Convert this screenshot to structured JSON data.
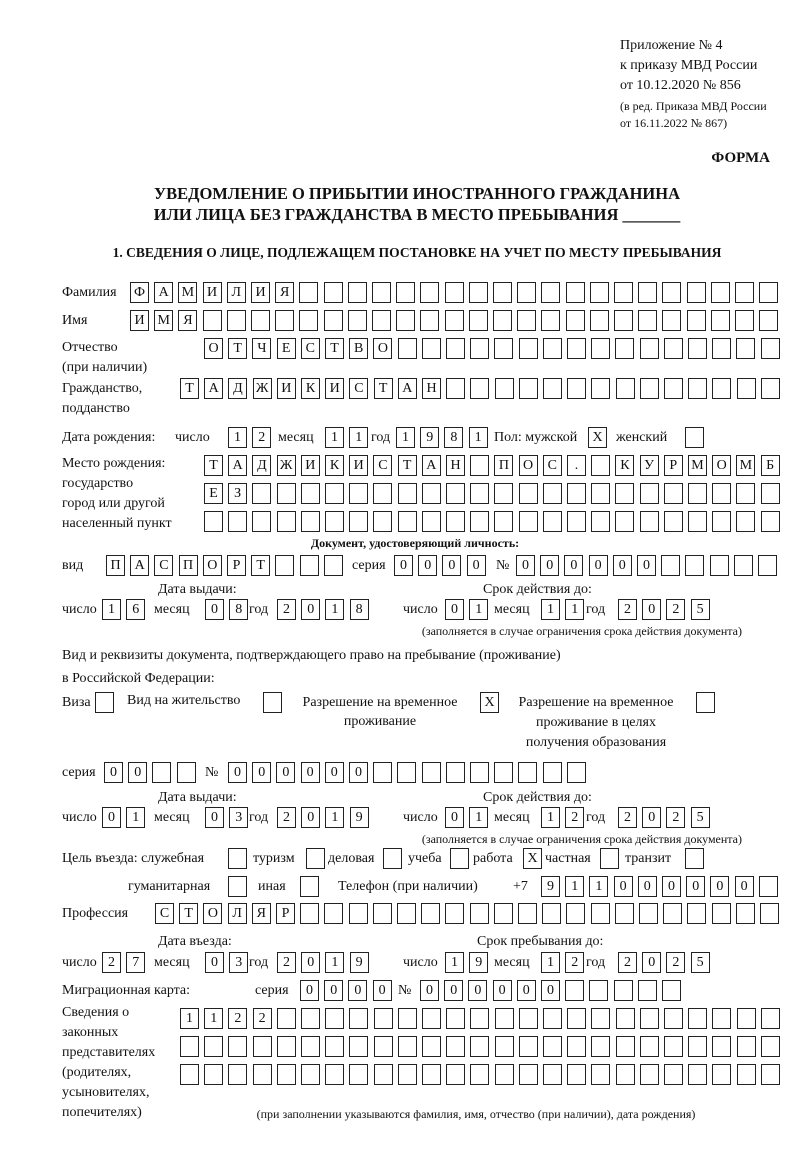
{
  "header": {
    "appendix": [
      "Приложение № 4",
      "к приказу МВД России",
      "от 10.12.2020 № 856"
    ],
    "edition": [
      "(в ред. Приказа МВД России",
      "от 16.11.2022 № 867)"
    ],
    "form_label": "ФОРМА",
    "title": [
      "УВЕДОМЛЕНИЕ О ПРИБЫТИИ ИНОСТРАННОГО ГРАЖДАНИНА",
      "ИЛИ ЛИЦА БЕЗ ГРАЖДАНСТВА В МЕСТО ПРЕБЫВАНИЯ _______"
    ],
    "section": "1. СВЕДЕНИЯ О ЛИЦЕ, ПОДЛЕЖАЩЕМ ПОСТАНОВКЕ НА УЧЕТ ПО МЕСТУ ПРЕБЫВАНИЯ"
  },
  "labels": {
    "surname": "Фамилия",
    "name": "Имя",
    "patronymic": "Отчество",
    "patronymic_note": "(при наличии)",
    "citizenship": "Гражданство,",
    "citizenship2": "подданство",
    "birth_date": "Дата рождения:",
    "day": "число",
    "month": "месяц",
    "year": "год",
    "sex": "Пол: мужской",
    "female": "женский",
    "birthplace": [
      "Место рождения:",
      "государство",
      "город или другой",
      "населенный пункт"
    ],
    "id_doc": "Документ, удостоверяющий личность:",
    "kind": "вид",
    "series": "серия",
    "number": "№",
    "issue_date": "Дата выдачи:",
    "valid_until": "Срок действия до:",
    "validity_note": "(заполняется в случае ограничения срока действия документа)",
    "stay_doc": [
      "Вид и реквизиты документа, подтверждающего право на пребывание (проживание)",
      "в Российской Федерации:"
    ],
    "visa": "Виза",
    "residence_permit": "Вид на жительство",
    "temp_permit": [
      "Разрешение на временное",
      "проживание"
    ],
    "temp_permit_edu": [
      "Разрешение на временное",
      "проживание в целях",
      "получения образования"
    ],
    "purpose": "Цель въезда: служебная",
    "tourism": "туризм",
    "business": "деловая",
    "study": "учеба",
    "work": "работа",
    "private": "частная",
    "transit": "транзит",
    "humanitarian": "гуманитарная",
    "other": "иная",
    "phone": "Телефон (при наличии)",
    "phone_prefix": "+7",
    "profession": "Профессия",
    "entry_date": "Дата въезда:",
    "stay_until": "Срок пребывания до:",
    "migration_card": "Миграционная карта:",
    "representatives": [
      "Сведения о",
      "законных",
      "представителях",
      "(родителях,",
      "усыновителях,",
      "попечителях)"
    ],
    "representatives_note": "(при заполнении указываются фамилия, имя, отчество (при наличии), дата рождения)"
  },
  "values": {
    "surname": "ФАМИЛИЯ",
    "name": "ИМЯ",
    "patronymic": "ОТЧЕСТВО",
    "citizenship": "ТАДЖИКИСТАН",
    "birth_day": "12",
    "birth_month": "11",
    "birth_year": "1981",
    "sex_male": "X",
    "sex_female": "",
    "birthplace_1": "ТАДЖИКИСТАН ПОС. КУРМОМБ",
    "birthplace_2": "ЕЗ",
    "birthplace_3": "",
    "id_kind": "ПАСПОРТ",
    "id_series": "0000",
    "id_number": "000000",
    "id_issue_day": "16",
    "id_issue_month": "08",
    "id_issue_year": "2018",
    "id_valid_day": "01",
    "id_valid_month": "11",
    "id_valid_year": "2025",
    "doc_visa": "",
    "doc_residence": "",
    "doc_temp": "X",
    "doc_temp_edu": "",
    "stay_series": "00",
    "stay_number": "000000",
    "stay_issue_day": "01",
    "stay_issue_month": "03",
    "stay_issue_year": "2019",
    "stay_valid_day": "01",
    "stay_valid_month": "12",
    "stay_valid_year": "2025",
    "purpose_official": "",
    "purpose_tourism": "",
    "purpose_business": "",
    "purpose_study": "",
    "purpose_work": "X",
    "purpose_private": "",
    "purpose_transit": "",
    "purpose_humanitarian": "",
    "purpose_other": "",
    "phone": "911000000",
    "profession": "СТОЛЯР",
    "entry_day": "27",
    "entry_month": "03",
    "entry_year": "2019",
    "stay_until_day": "19",
    "stay_until_month": "12",
    "stay_until_year": "2025",
    "mig_series": "0000",
    "mig_number": "000000",
    "rep_1": "1122",
    "rep_2": "",
    "rep_3": ""
  }
}
